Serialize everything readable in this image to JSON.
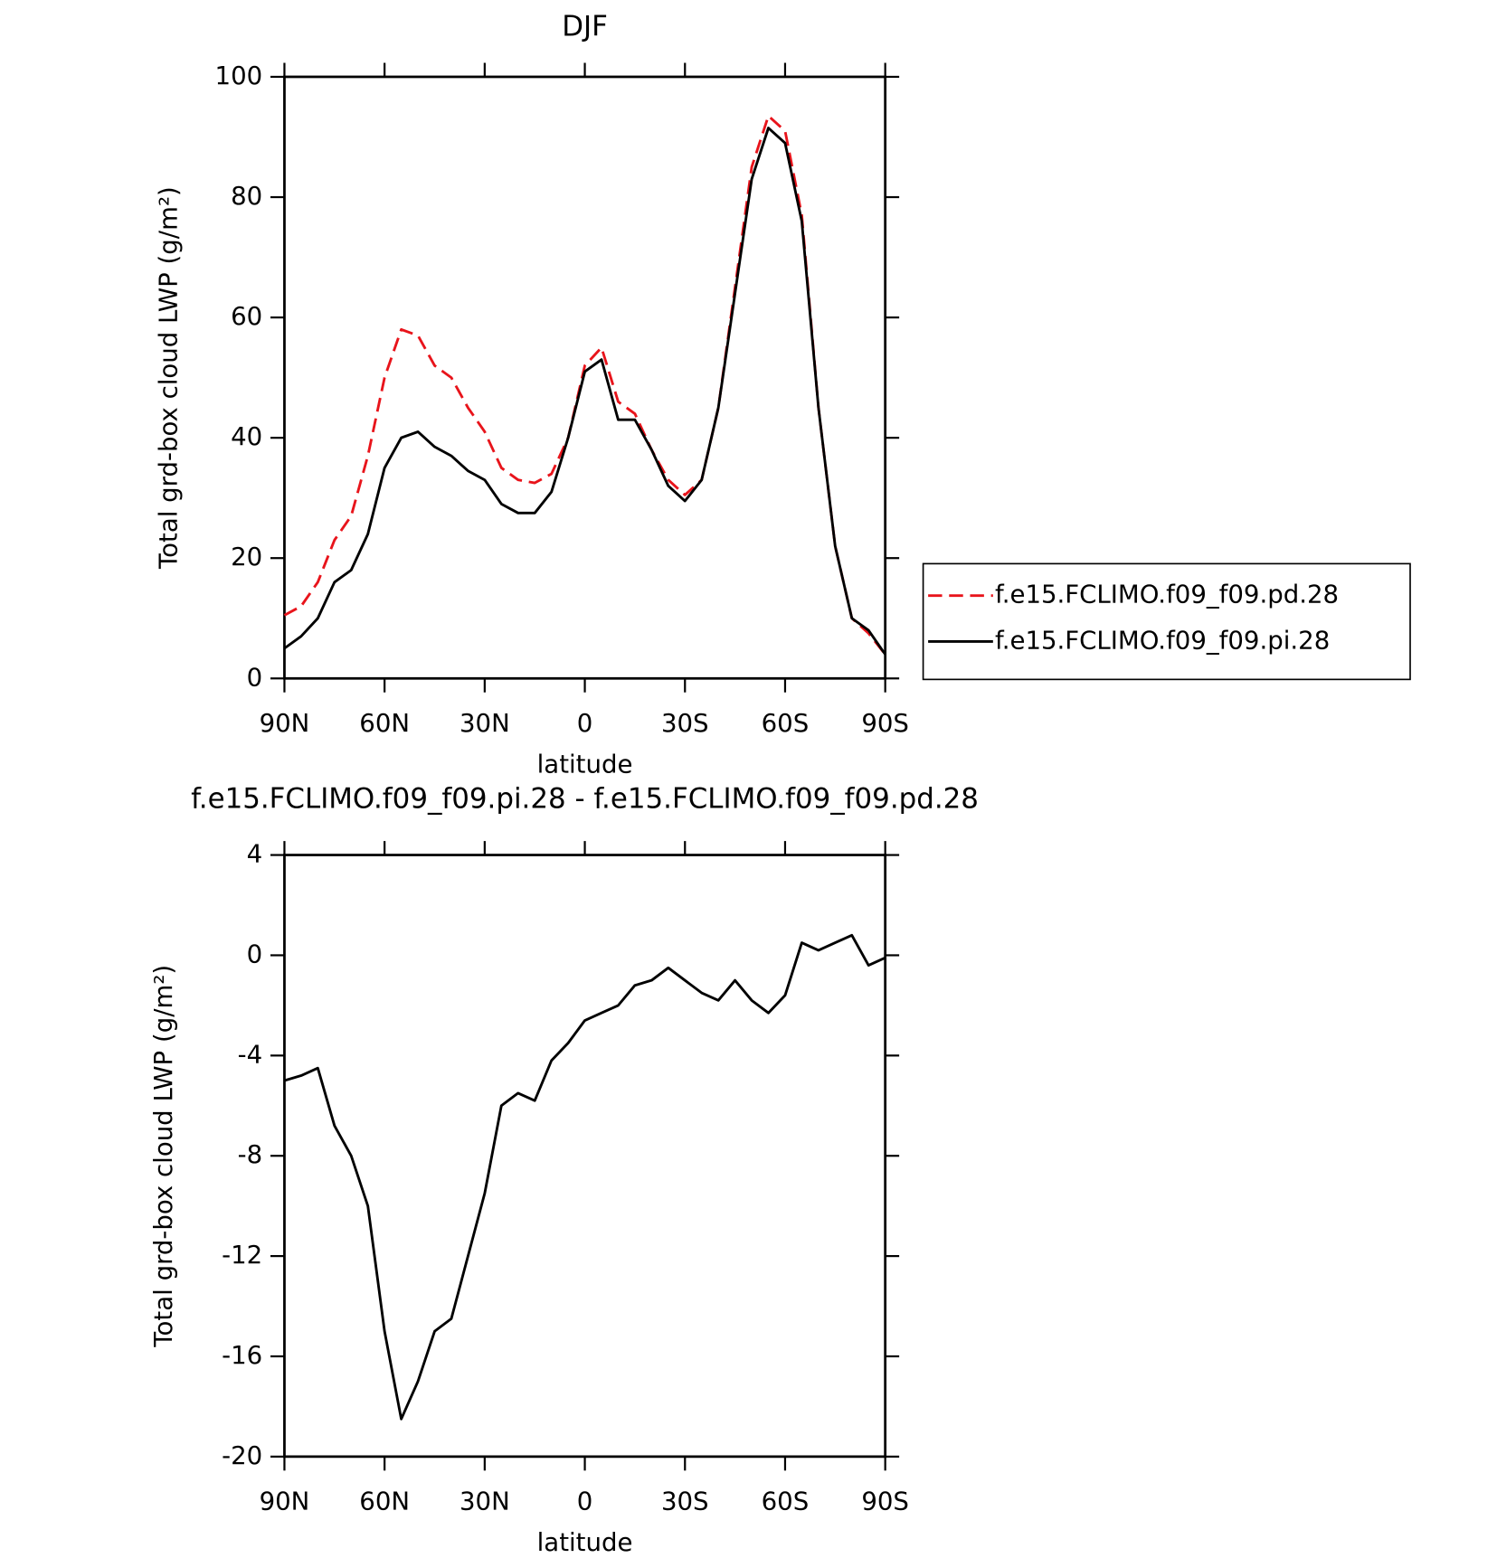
{
  "chart_data": [
    {
      "type": "line",
      "title": "DJF",
      "x_label": "latitude",
      "y_label": "Total grd-box cloud LWP (g/m²)",
      "x": [
        90,
        85,
        80,
        75,
        70,
        65,
        60,
        55,
        50,
        45,
        40,
        35,
        30,
        25,
        20,
        15,
        10,
        5,
        0,
        -5,
        -10,
        -15,
        -20,
        -25,
        -30,
        -35,
        -40,
        -45,
        -50,
        -55,
        -60,
        -65,
        -70,
        -75,
        -80,
        -85,
        -90
      ],
      "xlim": [
        90,
        -90
      ],
      "xticks": [
        {
          "value": 90,
          "label": "90N"
        },
        {
          "value": 60,
          "label": "60N"
        },
        {
          "value": 30,
          "label": "30N"
        },
        0,
        {
          "value": -30,
          "label": "30S"
        },
        {
          "value": -60,
          "label": "60S"
        },
        {
          "value": -90,
          "label": "90S"
        }
      ],
      "ylim": [
        0,
        100
      ],
      "yticks": [
        0,
        20,
        40,
        60,
        80,
        100
      ],
      "legend": "right",
      "series": [
        {
          "name": "f.e15.FCLIMO.f09_f09.pd.28",
          "color": "#e8141b",
          "dashed": true,
          "values": [
            10.5,
            12,
            16,
            23,
            27,
            37,
            50,
            58,
            57,
            52,
            50,
            45,
            41,
            35,
            33,
            32.5,
            34,
            40,
            52,
            55,
            46,
            44,
            38,
            33,
            30.5,
            33,
            45,
            65,
            85,
            93.5,
            91,
            77,
            45,
            22,
            10,
            7.5,
            4
          ]
        },
        {
          "name": "f.e15.FCLIMO.f09_f09.pi.28",
          "color": "#000000",
          "dashed": false,
          "values": [
            5,
            7,
            10,
            16,
            18,
            24,
            35,
            40,
            41,
            38.5,
            37,
            34.5,
            33,
            29,
            27.5,
            27.5,
            31,
            40,
            51,
            53,
            43,
            43,
            38,
            32,
            29.5,
            33,
            45,
            64,
            83,
            91.5,
            89,
            76,
            45,
            22,
            10,
            8,
            4
          ]
        }
      ]
    },
    {
      "type": "line",
      "title": "f.e15.FCLIMO.f09_f09.pi.28 - f.e15.FCLIMO.f09_f09.pd.28",
      "x_label": "latitude",
      "y_label": "Total grd-box cloud LWP (g/m²)",
      "x": [
        90,
        85,
        80,
        75,
        70,
        65,
        60,
        55,
        50,
        45,
        40,
        35,
        30,
        25,
        20,
        15,
        10,
        5,
        0,
        -5,
        -10,
        -15,
        -20,
        -25,
        -30,
        -35,
        -40,
        -45,
        -50,
        -55,
        -60,
        -65,
        -70,
        -75,
        -80,
        -85,
        -90
      ],
      "xlim": [
        90,
        -90
      ],
      "xticks": [
        {
          "value": 90,
          "label": "90N"
        },
        {
          "value": 60,
          "label": "60N"
        },
        {
          "value": 30,
          "label": "30N"
        },
        0,
        {
          "value": -30,
          "label": "30S"
        },
        {
          "value": -60,
          "label": "60S"
        },
        {
          "value": -90,
          "label": "90S"
        }
      ],
      "ylim": [
        -20,
        4
      ],
      "yticks": [
        -20,
        -16,
        -12,
        -8,
        -4,
        0,
        4
      ],
      "series": [
        {
          "color": "#000000",
          "dashed": false,
          "values": [
            -5,
            -4.8,
            -4.5,
            -6.8,
            -8,
            -10,
            -15,
            -18.5,
            -17,
            -15,
            -14.5,
            -12,
            -9.5,
            -6,
            -5.5,
            -5.8,
            -4.2,
            -3.5,
            -2.6,
            -2.3,
            -2,
            -1.2,
            -1,
            -0.5,
            -1,
            -1.5,
            -1.8,
            -1,
            -1.8,
            -2.3,
            -1.6,
            0.5,
            0.2,
            0.5,
            0.8,
            -0.4,
            -0.1
          ]
        }
      ]
    }
  ]
}
